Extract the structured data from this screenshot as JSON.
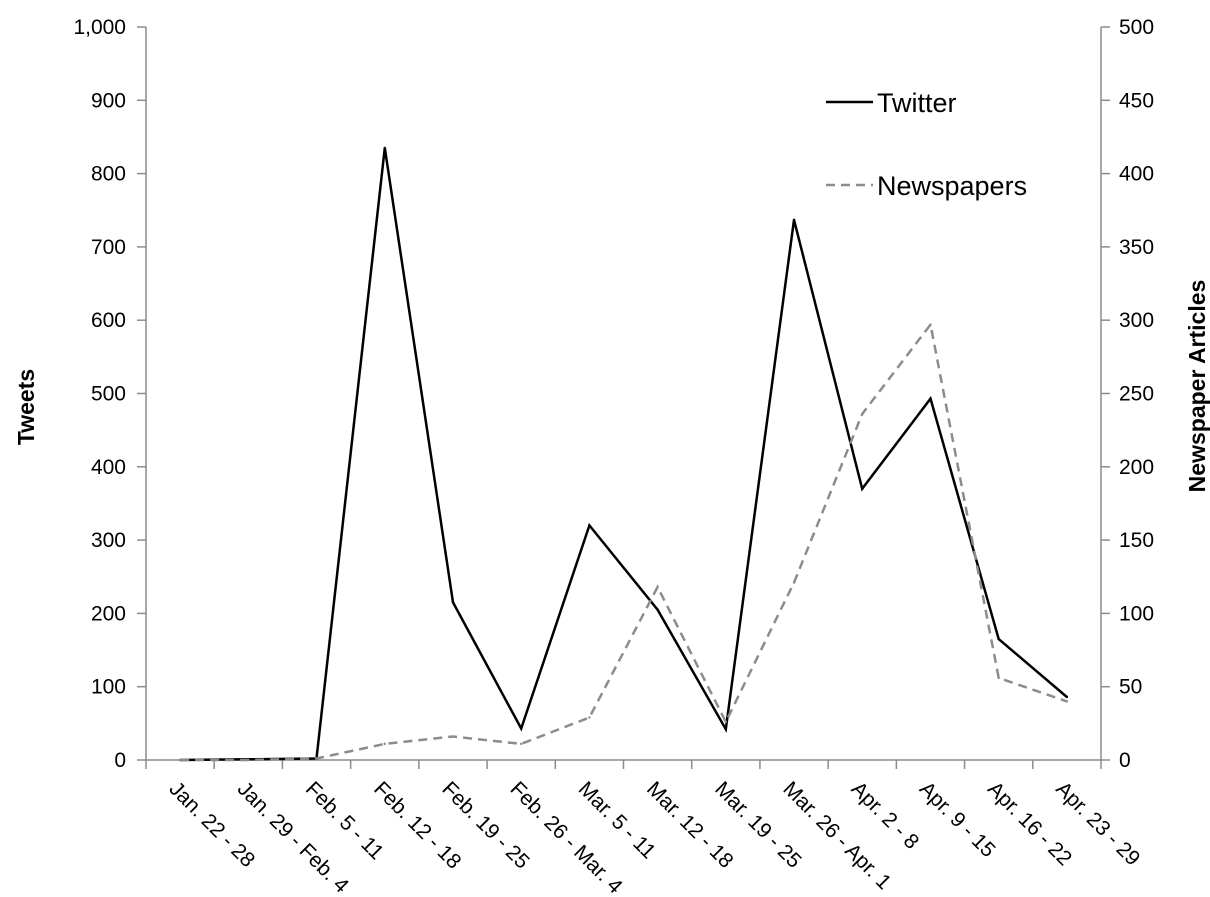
{
  "chart_data": {
    "type": "line",
    "categories": [
      "Jan. 22 - 28",
      "Jan. 29 - Feb. 4",
      "Feb. 5 - 11",
      "Feb. 12 - 18",
      "Feb. 19 - 25",
      "Feb. 26 - Mar. 4",
      "Mar. 5 - 11",
      "Mar. 12 - 18",
      "Mar. 19 - 25",
      "Mar. 26 - Apr. 1",
      "Apr. 2 - 8",
      "Apr. 9 - 15",
      "Apr. 16 - 22",
      "Apr. 23 - 29"
    ],
    "series": [
      {
        "name": "Twitter",
        "axis": "left",
        "style": "solid",
        "color": "#000000",
        "values": [
          0,
          1,
          2,
          835,
          215,
          43,
          320,
          205,
          42,
          737,
          370,
          493,
          165,
          86
        ]
      },
      {
        "name": "Newspapers",
        "axis": "right",
        "style": "dashed",
        "color": "#8c8c8c",
        "values": [
          0,
          0,
          1,
          11,
          16,
          11,
          29,
          118,
          26,
          121,
          236,
          297,
          56,
          40
        ]
      }
    ],
    "ylabel": "Tweets",
    "y2label": "Newspaper Articles",
    "ylim": [
      0,
      1000
    ],
    "y2lim": [
      0,
      500
    ],
    "yticks": [
      "0",
      "100",
      "200",
      "300",
      "400",
      "500",
      "600",
      "700",
      "800",
      "900",
      "1,000"
    ],
    "y2ticks": [
      "0",
      "50",
      "100",
      "150",
      "200",
      "250",
      "300",
      "350",
      "400",
      "450",
      "500"
    ],
    "grid": false,
    "legend_position": "top-right"
  }
}
